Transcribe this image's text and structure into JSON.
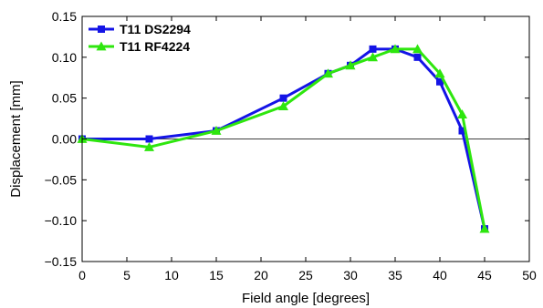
{
  "chart_data": {
    "type": "line",
    "title": "",
    "xlabel": "Field angle [degrees]",
    "ylabel": "Displacement [mm]",
    "xlim": [
      0,
      50
    ],
    "ylim": [
      -0.15,
      0.15
    ],
    "xticks": [
      "0",
      "5",
      "10",
      "15",
      "20",
      "25",
      "30",
      "35",
      "40",
      "45",
      "50"
    ],
    "yticks": [
      "0.15",
      "0.10",
      "0.05",
      "0.00",
      "−0.05",
      "−0.10",
      "−0.15"
    ],
    "grid": false,
    "zero_line": true,
    "legend_position": "top-left",
    "series": [
      {
        "name": "T11 DS2294",
        "color": "#1414e6",
        "marker": "square",
        "x": [
          0,
          7.5,
          15,
          22.5,
          27.5,
          30,
          32.5,
          35,
          37.5,
          40,
          42.5,
          45
        ],
        "y": [
          0.0,
          0.0,
          0.01,
          0.05,
          0.08,
          0.09,
          0.11,
          0.11,
          0.1,
          0.07,
          0.01,
          -0.11
        ]
      },
      {
        "name": "T11 RF4224",
        "color": "#2ee60e",
        "marker": "triangle",
        "x": [
          0,
          7.5,
          15,
          22.5,
          27.5,
          30,
          32.5,
          35,
          37.5,
          40,
          42.5,
          45
        ],
        "y": [
          0.0,
          -0.01,
          0.01,
          0.04,
          0.08,
          0.09,
          0.1,
          0.11,
          0.11,
          0.08,
          0.03,
          -0.11
        ]
      }
    ]
  }
}
